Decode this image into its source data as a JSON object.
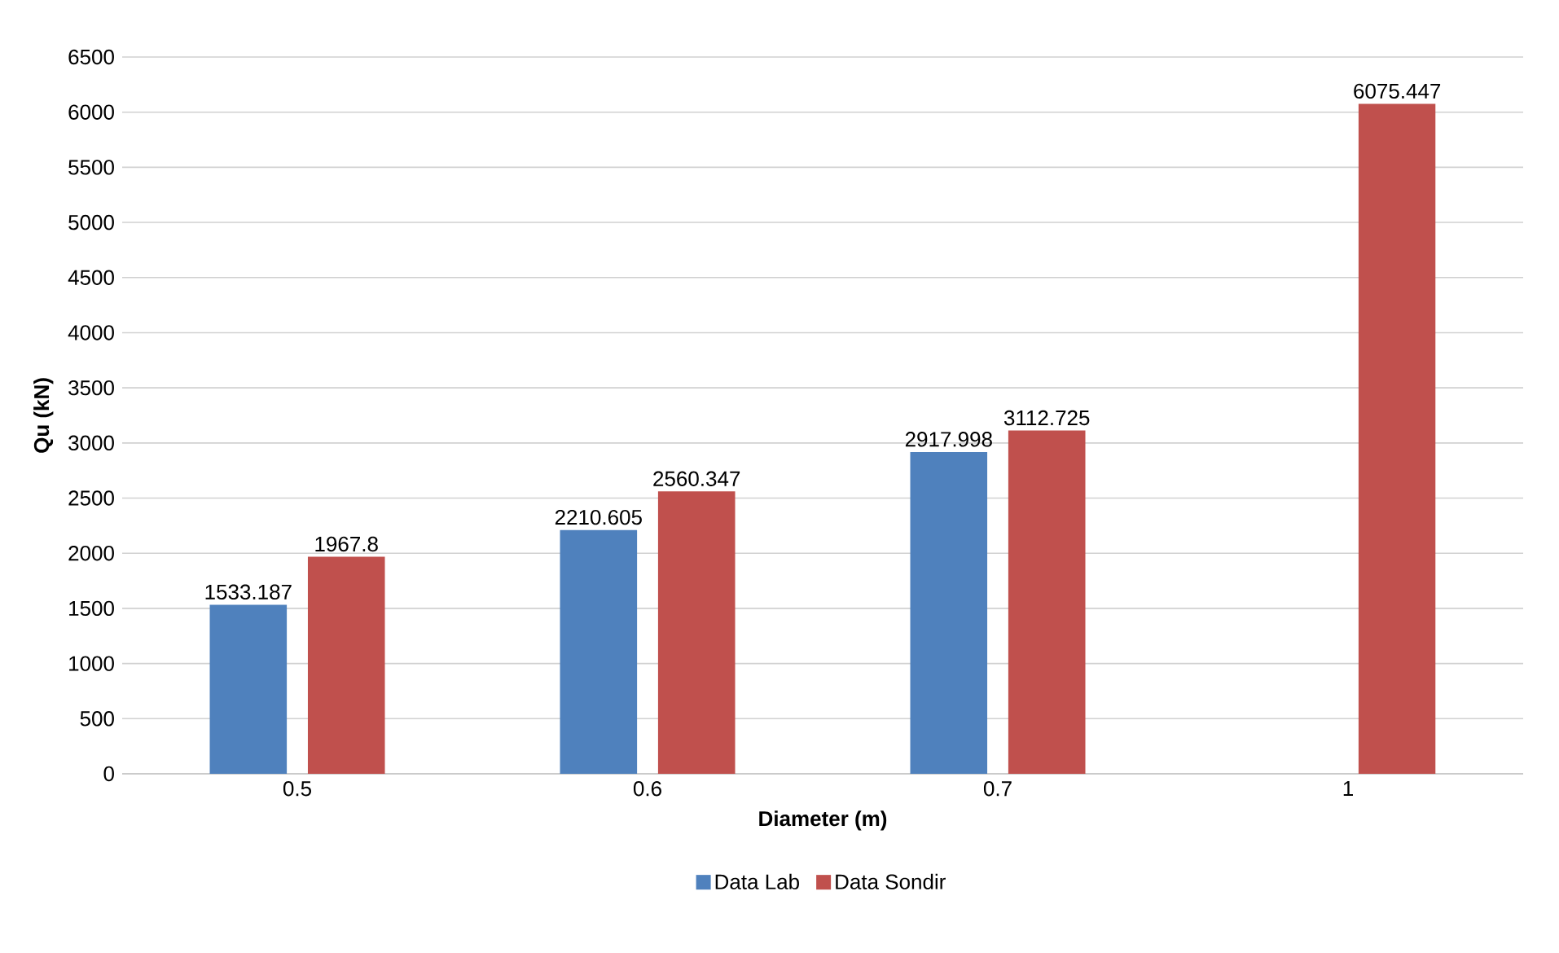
{
  "chart_data": {
    "type": "bar",
    "xlabel": "Diameter (m)",
    "ylabel": "Qu (kN)",
    "categories": [
      "0.5",
      "0.6",
      "0.7",
      "1"
    ],
    "series": [
      {
        "name": "Data Lab",
        "color": "#4f81bd",
        "values": [
          1533.187,
          2210.605,
          2917.998,
          null
        ]
      },
      {
        "name": "Data Sondir",
        "color": "#c0504d",
        "values": [
          1967.8,
          2560.347,
          3112.725,
          6075.447
        ]
      }
    ],
    "ylim": [
      0,
      6500
    ],
    "yticks": [
      0,
      500,
      1000,
      1500,
      2000,
      2500,
      3000,
      3500,
      4000,
      4500,
      5000,
      5500,
      6000,
      6500
    ],
    "grid": "y",
    "legend": "bottom",
    "data_labels": true
  }
}
